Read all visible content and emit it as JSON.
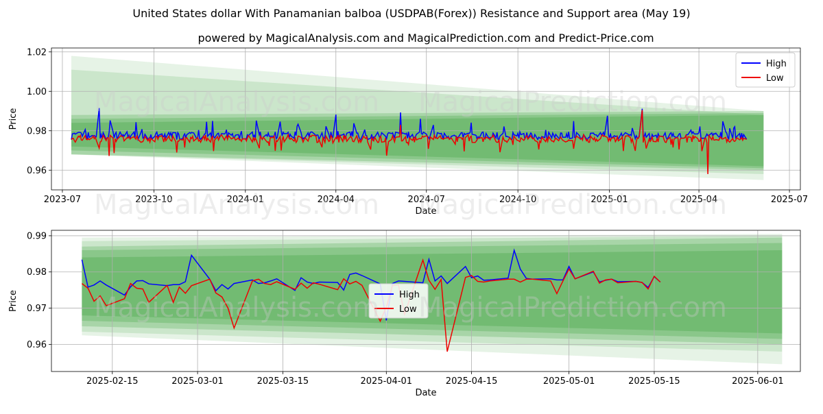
{
  "title": "United States dollar With Panamanian balboa (USDPAB(Forex)) Resistance and Support area (May 19)",
  "subtitle": "powered by MagicalAnalysis.com and MagicalPrediction.com and Predict-Price.com",
  "watermarks": [
    "MagicalAnalysis.com",
    "MagicalPrediction.com"
  ],
  "colors": {
    "high": "#0000ff",
    "low": "#ee0000",
    "band": "#2e9a2e",
    "grid": "#b0b0b0"
  },
  "chart_data": [
    {
      "type": "line",
      "xlabel": "Date",
      "ylabel": "Price",
      "x_ticks": [
        "2023-07",
        "2023-10",
        "2024-01",
        "2024-04",
        "2024-07",
        "2024-10",
        "2025-01",
        "2025-04",
        "2025-07"
      ],
      "y_ticks": [
        "0.96",
        "0.98",
        "1.00",
        "1.02"
      ],
      "xlim": [
        "2023-06-20",
        "2025-07-12"
      ],
      "ylim": [
        0.95,
        1.022
      ],
      "grid": true,
      "legend": "top-right",
      "series": [
        {
          "name": "High",
          "summary": {
            "start": "2023-07-10",
            "end": "2025-05-19",
            "typical_min": 0.976,
            "typical_max": 0.98,
            "max": 0.992
          }
        },
        {
          "name": "Low",
          "summary": {
            "start": "2023-07-10",
            "end": "2025-05-19",
            "typical_min": 0.972,
            "typical_max": 0.978,
            "min": 0.958
          }
        }
      ],
      "bands": [
        {
          "x": [
            "2023-07-10",
            "2025-06-05"
          ],
          "upper": [
            1.018,
            0.99
          ],
          "lower": [
            0.968,
            0.955
          ]
        },
        {
          "x": [
            "2023-07-10",
            "2025-06-05"
          ],
          "upper": [
            1.011,
            0.988
          ],
          "lower": [
            0.968,
            0.958
          ]
        },
        {
          "x": [
            "2023-07-10",
            "2025-06-05"
          ],
          "upper": [
            0.988,
            0.99
          ],
          "lower": [
            0.968,
            0.96
          ]
        },
        {
          "x": [
            "2023-07-10",
            "2025-06-05"
          ],
          "upper": [
            0.986,
            0.989
          ],
          "lower": [
            0.97,
            0.961
          ]
        },
        {
          "x": [
            "2023-07-10",
            "2025-06-05"
          ],
          "upper": [
            0.984,
            0.988
          ],
          "lower": [
            0.972,
            0.962
          ]
        }
      ]
    },
    {
      "type": "line",
      "xlabel": "Date",
      "ylabel": "Price",
      "x_ticks": [
        "2025-02-15",
        "2025-03-01",
        "2025-03-15",
        "2025-04-01",
        "2025-04-15",
        "2025-05-01",
        "2025-05-15",
        "2025-06-01"
      ],
      "y_ticks": [
        "0.96",
        "0.97",
        "0.98",
        "0.99"
      ],
      "xlim": [
        "2025-02-05",
        "2025-06-08"
      ],
      "ylim": [
        0.9525,
        0.9915
      ],
      "grid": true,
      "legend": "center",
      "x": [
        "2025-02-10",
        "2025-02-11",
        "2025-02-12",
        "2025-02-13",
        "2025-02-14",
        "2025-02-17",
        "2025-02-18",
        "2025-02-19",
        "2025-02-20",
        "2025-02-21",
        "2025-02-24",
        "2025-02-25",
        "2025-02-26",
        "2025-02-27",
        "2025-02-28",
        "2025-03-03",
        "2025-03-04",
        "2025-03-05",
        "2025-03-06",
        "2025-03-07",
        "2025-03-10",
        "2025-03-11",
        "2025-03-12",
        "2025-03-13",
        "2025-03-14",
        "2025-03-17",
        "2025-03-18",
        "2025-03-19",
        "2025-03-20",
        "2025-03-21",
        "2025-03-24",
        "2025-03-25",
        "2025-03-26",
        "2025-03-27",
        "2025-03-28",
        "2025-03-31",
        "2025-04-01",
        "2025-04-02",
        "2025-04-03",
        "2025-04-04",
        "2025-04-07",
        "2025-04-08",
        "2025-04-09",
        "2025-04-10",
        "2025-04-11",
        "2025-04-14",
        "2025-04-15",
        "2025-04-16",
        "2025-04-17",
        "2025-04-18",
        "2025-04-21",
        "2025-04-22",
        "2025-04-23",
        "2025-04-24",
        "2025-04-25",
        "2025-04-28",
        "2025-04-29",
        "2025-04-30",
        "2025-05-01",
        "2025-05-02",
        "2025-05-05",
        "2025-05-06",
        "2025-05-07",
        "2025-05-08",
        "2025-05-09",
        "2025-05-12",
        "2025-05-13",
        "2025-05-14",
        "2025-05-15",
        "2025-05-16"
      ],
      "series": [
        {
          "name": "High",
          "values": [
            0.9834,
            0.9758,
            0.9764,
            0.9775,
            0.9764,
            0.9736,
            0.9759,
            0.9775,
            0.9776,
            0.9767,
            0.9762,
            0.9765,
            0.9765,
            0.9773,
            0.9846,
            0.978,
            0.9748,
            0.9765,
            0.9753,
            0.9768,
            0.9778,
            0.9768,
            0.977,
            0.9775,
            0.9781,
            0.9749,
            0.9784,
            0.9772,
            0.9768,
            0.9772,
            0.9771,
            0.975,
            0.9793,
            0.9797,
            0.979,
            0.9767,
            0.9666,
            0.9768,
            0.9775,
            0.9774,
            0.977,
            0.9835,
            0.9775,
            0.9789,
            0.9768,
            0.9815,
            0.9784,
            0.9789,
            0.9777,
            0.9778,
            0.9783,
            0.986,
            0.9808,
            0.9782,
            0.978,
            0.9781,
            0.9778,
            0.9778,
            0.9815,
            0.9781,
            0.98,
            0.9772,
            0.9777,
            0.978,
            0.9773,
            0.9774,
            0.9771,
            0.9757,
            0.9787,
            0.9772
          ]
        },
        {
          "name": "Low",
          "values": [
            0.9768,
            0.9755,
            0.9719,
            0.9734,
            0.9707,
            0.9726,
            0.9768,
            0.9755,
            0.9753,
            0.9716,
            0.9763,
            0.9716,
            0.9758,
            0.9741,
            0.9762,
            0.978,
            0.9742,
            0.9731,
            0.97,
            0.9645,
            0.9775,
            0.978,
            0.9768,
            0.9765,
            0.9773,
            0.9752,
            0.9769,
            0.9755,
            0.977,
            0.9766,
            0.9751,
            0.9781,
            0.9767,
            0.9774,
            0.9763,
            0.9664,
            0.9703,
            0.9762,
            0.9764,
            0.9683,
            0.9833,
            0.9777,
            0.9752,
            0.9779,
            0.958,
            0.9785,
            0.979,
            0.9774,
            0.9772,
            0.9775,
            0.978,
            0.978,
            0.9772,
            0.978,
            0.978,
            0.9775,
            0.974,
            0.9775,
            0.9808,
            0.9781,
            0.9802,
            0.9769,
            0.9778,
            0.978,
            0.977,
            0.9774,
            0.9771,
            0.9753,
            0.9788,
            0.9772
          ]
        }
      ],
      "bands": [
        {
          "x": [
            "2025-02-10",
            "2025-06-05"
          ],
          "upper": [
            0.9895,
            0.9905
          ],
          "lower": [
            0.9625,
            0.9545
          ]
        },
        {
          "x": [
            "2025-02-10",
            "2025-06-05"
          ],
          "upper": [
            0.9885,
            0.99
          ],
          "lower": [
            0.9635,
            0.958
          ]
        },
        {
          "x": [
            "2025-02-10",
            "2025-06-05"
          ],
          "upper": [
            0.987,
            0.9895
          ],
          "lower": [
            0.965,
            0.96
          ]
        },
        {
          "x": [
            "2025-02-10",
            "2025-06-05"
          ],
          "upper": [
            0.986,
            0.988
          ],
          "lower": [
            0.9665,
            0.9615
          ]
        },
        {
          "x": [
            "2025-02-10",
            "2025-06-05"
          ],
          "upper": [
            0.984,
            0.986
          ],
          "lower": [
            0.968,
            0.963
          ]
        }
      ]
    }
  ]
}
